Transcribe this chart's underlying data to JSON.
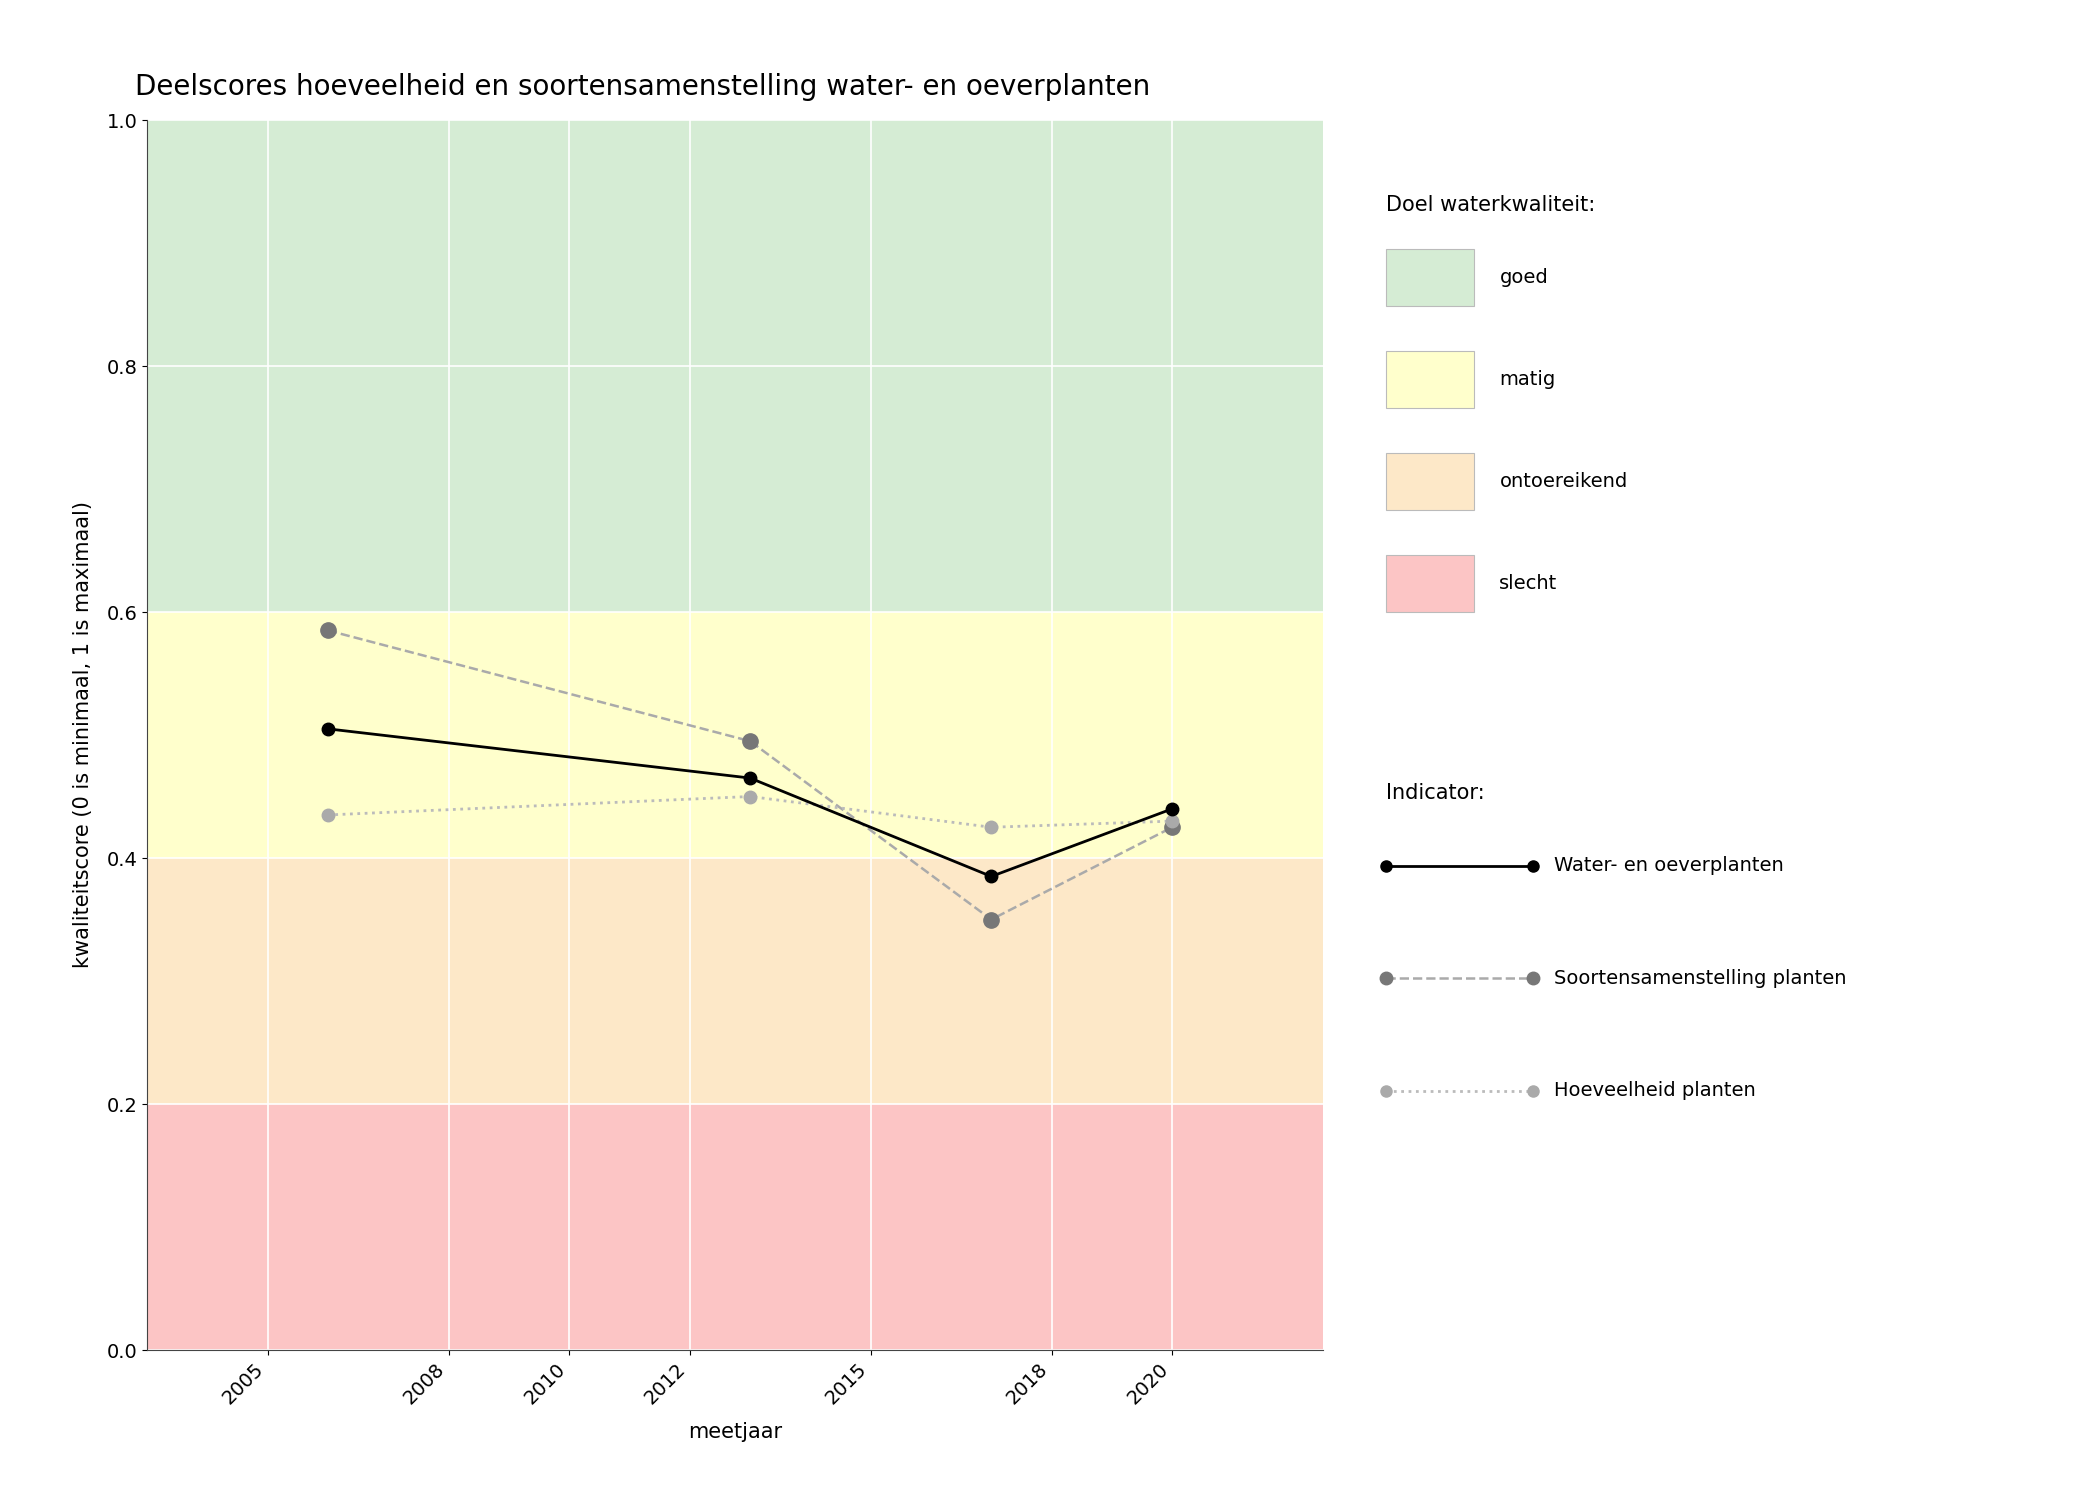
{
  "title": "Deelscores hoeveelheid en soortensamenstelling water- en oeverplanten",
  "xlabel": "meetjaar",
  "ylabel": "kwaliteitscore (0 is minimaal, 1 is maximaal)",
  "ylim": [
    0.0,
    1.0
  ],
  "yticks": [
    0.0,
    0.2,
    0.4,
    0.6,
    0.8,
    1.0
  ],
  "xticks": [
    2005,
    2008,
    2010,
    2012,
    2015,
    2018,
    2020
  ],
  "xlim": [
    2003.0,
    2022.5
  ],
  "bg_color": "#ffffff",
  "plot_bg_color": "#ffffff",
  "quality_bands": [
    {
      "ymin": 0.6,
      "ymax": 1.0,
      "color": "#d5ecd4",
      "label": "goed"
    },
    {
      "ymin": 0.4,
      "ymax": 0.6,
      "color": "#ffffcc",
      "label": "matig"
    },
    {
      "ymin": 0.2,
      "ymax": 0.4,
      "color": "#fde8c8",
      "label": "ontoereikend"
    },
    {
      "ymin": 0.0,
      "ymax": 0.2,
      "color": "#fcc5c5",
      "label": "slecht"
    }
  ],
  "line_water_oever": {
    "years": [
      2006,
      2013,
      2017,
      2020
    ],
    "values": [
      0.505,
      0.465,
      0.385,
      0.44
    ],
    "color": "#000000",
    "linestyle": "-",
    "linewidth": 2.0,
    "marker": "o",
    "markersize": 9,
    "markerfacecolor": "#000000",
    "markeredgecolor": "#000000",
    "label": "Water- en oeverplanten"
  },
  "line_soortensamenstelling": {
    "years": [
      2006,
      2013,
      2017,
      2020
    ],
    "values": [
      0.585,
      0.495,
      0.35,
      0.425
    ],
    "color": "#aaaaaa",
    "linestyle": "--",
    "linewidth": 1.8,
    "marker": "o",
    "markersize": 11,
    "markerfacecolor": "#777777",
    "markeredgecolor": "#777777",
    "label": "Soortensamenstelling planten"
  },
  "line_hoeveelheid": {
    "years": [
      2006,
      2013,
      2017,
      2020
    ],
    "values": [
      0.435,
      0.45,
      0.425,
      0.43
    ],
    "color": "#bbbbbb",
    "linestyle": ":",
    "linewidth": 2.0,
    "marker": "o",
    "markersize": 9,
    "markerfacecolor": "#aaaaaa",
    "markeredgecolor": "#aaaaaa",
    "label": "Hoeveelheid planten"
  },
  "legend_doel_title": "Doel waterkwaliteit:",
  "legend_indicator_title": "Indicator:",
  "title_fontsize": 20,
  "axis_label_fontsize": 15,
  "tick_fontsize": 14,
  "legend_fontsize": 14,
  "legend_title_fontsize": 15
}
